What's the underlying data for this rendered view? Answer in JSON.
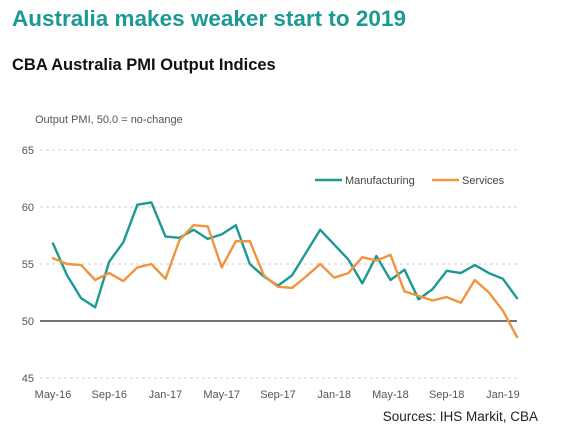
{
  "header": {
    "title": "Australia makes weaker start to 2019",
    "subtitle": "CBA Australia PMI Output Indices"
  },
  "footer": {
    "source": "Sources: IHS Markit, CBA"
  },
  "chart_data": {
    "type": "line",
    "ylabel": "Output PMI,  50.0 = no-change",
    "ylim": [
      45,
      65
    ],
    "yticks": [
      45,
      50,
      55,
      60,
      65
    ],
    "xlim": [
      "2016-05",
      "2019-02"
    ],
    "xticks": [
      "May-16",
      "Sep-16",
      "Jan-17",
      "May-17",
      "Sep-17",
      "Jan-18",
      "May-18",
      "Sep-18",
      "Jan-19"
    ],
    "grid": true,
    "reference_line": 50,
    "legend_position": "top-right",
    "x": [
      "2016-05",
      "2016-06",
      "2016-07",
      "2016-08",
      "2016-09",
      "2016-10",
      "2016-11",
      "2016-12",
      "2017-01",
      "2017-02",
      "2017-03",
      "2017-04",
      "2017-05",
      "2017-06",
      "2017-07",
      "2017-08",
      "2017-09",
      "2017-10",
      "2017-11",
      "2017-12",
      "2018-01",
      "2018-02",
      "2018-03",
      "2018-04",
      "2018-05",
      "2018-06",
      "2018-07",
      "2018-08",
      "2018-09",
      "2018-10",
      "2018-11",
      "2018-12",
      "2019-01",
      "2019-02"
    ],
    "series": [
      {
        "name": "Manufacturing",
        "color": "#1b9a94",
        "values": [
          56.8,
          54.0,
          52.0,
          51.2,
          55.2,
          56.9,
          60.2,
          60.4,
          57.4,
          57.3,
          58.0,
          57.2,
          57.6,
          58.4,
          55.0,
          53.9,
          53.1,
          54.0,
          56.0,
          58.0,
          56.7,
          55.4,
          53.3,
          55.7,
          53.6,
          54.5,
          51.9,
          52.8,
          54.4,
          54.2,
          54.9,
          54.2,
          53.7,
          52.0
        ]
      },
      {
        "name": "Services",
        "color": "#f0943e",
        "values": [
          55.5,
          55.0,
          54.9,
          53.6,
          54.2,
          53.5,
          54.7,
          55.0,
          53.7,
          57.1,
          58.4,
          58.3,
          54.7,
          57.0,
          57.0,
          54.0,
          53.0,
          52.9,
          53.9,
          55.0,
          53.8,
          54.2,
          55.6,
          55.3,
          55.8,
          52.6,
          52.2,
          51.8,
          52.1,
          51.6,
          53.6,
          52.5,
          50.9,
          48.6
        ]
      }
    ]
  }
}
